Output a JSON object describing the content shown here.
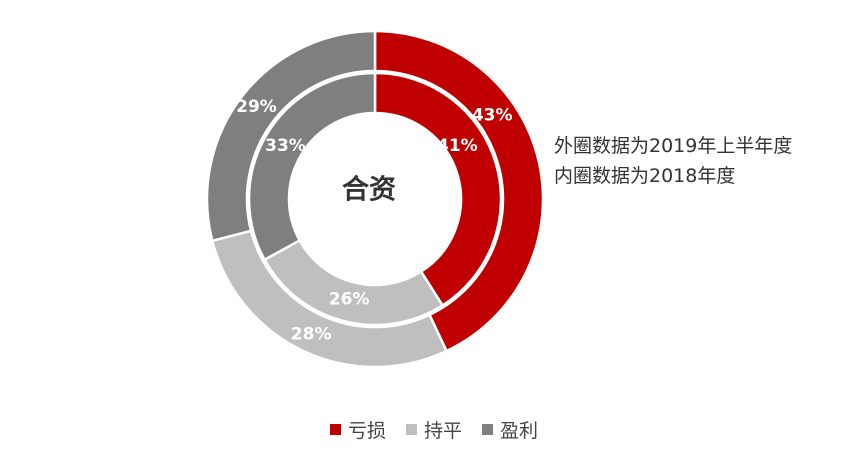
{
  "chart_data": {
    "type": "pie",
    "subtype": "nested-donut",
    "center_label": "合资",
    "categories": [
      "亏损",
      "持平",
      "盈利"
    ],
    "colors": [
      "#C00000",
      "#BFBFBF",
      "#7F7F7F"
    ],
    "series": [
      {
        "ring": "outer",
        "values": [
          43,
          28,
          29
        ],
        "labels": [
          "43%",
          "28%",
          "29%"
        ]
      },
      {
        "ring": "inner",
        "values": [
          41,
          26,
          33
        ],
        "labels": [
          "41%",
          "26%",
          "33%"
        ]
      }
    ],
    "notes": {
      "outer": "外圈数据为2019年上半年度",
      "inner": "内圈数据为2018年度"
    },
    "legend_position": "bottom"
  }
}
